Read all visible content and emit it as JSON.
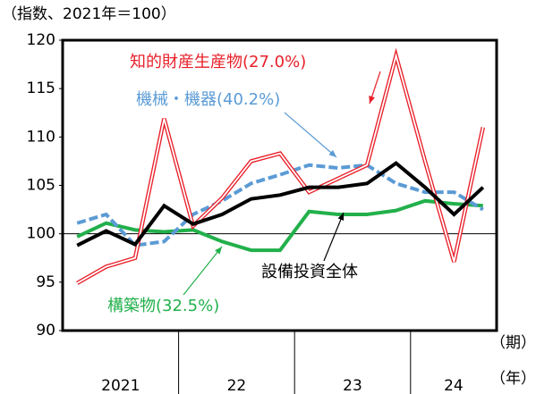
{
  "chart_data": {
    "type": "line",
    "y_unit_label": "（指数、2021年＝100）",
    "x_period_label": "（期）",
    "x_year_label": "（年）",
    "categories": [
      null,
      null,
      null,
      null,
      null,
      null,
      null,
      null,
      null,
      null,
      null,
      null,
      null,
      null,
      null
    ],
    "year_labels": [
      "2021",
      "22",
      "23",
      "24"
    ],
    "ylim": [
      90,
      120
    ],
    "yticks": [
      90,
      95,
      100,
      105,
      110,
      115,
      120
    ],
    "reference_line": 100,
    "series": [
      {
        "name": "知的財産生産物(27.0%)",
        "color": "#e8202a",
        "values": [
          94.9,
          96.6,
          97.5,
          111.9,
          100.8,
          103.7,
          107.5,
          108.3,
          104.3,
          105.7,
          107.1,
          118.4,
          107.5,
          97.1,
          111.0
        ]
      },
      {
        "name": "機械・機器(40.2%)",
        "color": "#5b9bd5",
        "values": [
          101.1,
          102.0,
          98.8,
          99.2,
          102.0,
          103.4,
          105.2,
          106.1,
          107.1,
          106.8,
          107.1,
          105.2,
          104.3,
          104.3,
          102.5
        ]
      },
      {
        "name": "構築物(32.5%)",
        "color": "#22b04b",
        "values": [
          99.7,
          101.1,
          100.4,
          100.2,
          100.4,
          99.2,
          98.3,
          98.3,
          102.3,
          102.0,
          102.0,
          102.4,
          103.4,
          103.1,
          102.9
        ]
      },
      {
        "name": "設備投資全体",
        "color": "#000000",
        "values": [
          98.8,
          100.3,
          98.9,
          102.9,
          101.0,
          102.0,
          103.6,
          104.0,
          104.8,
          104.8,
          105.2,
          107.3,
          104.8,
          102.0,
          104.8
        ]
      }
    ]
  }
}
